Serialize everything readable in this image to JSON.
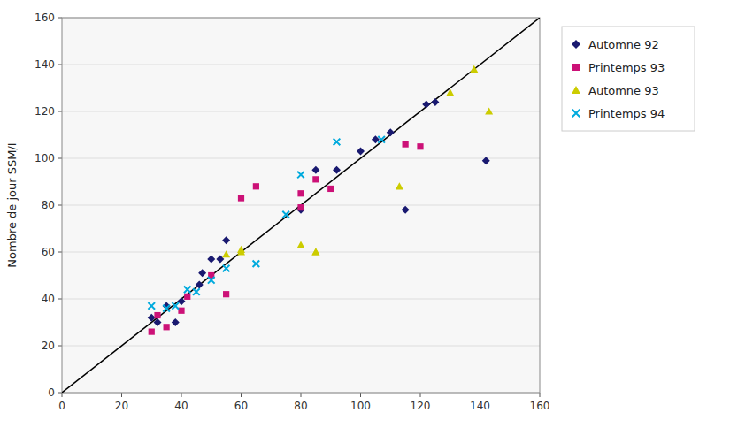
{
  "chart_data": {
    "type": "scatter",
    "ylabel": "Nombre de jour SSM/I",
    "xlim": [
      0,
      160
    ],
    "ylim": [
      0,
      160
    ],
    "xticks": [
      0,
      20,
      40,
      60,
      80,
      100,
      120,
      140,
      160
    ],
    "yticks": [
      0,
      20,
      40,
      60,
      80,
      100,
      120,
      140,
      160
    ],
    "grid": "y",
    "legend": "right",
    "series": [
      {
        "type": "line",
        "color": "#000000",
        "line_style": "solid",
        "x": [
          0,
          160
        ],
        "values": [
          0,
          160
        ]
      },
      {
        "name": "Automne 92",
        "type": "scatter",
        "color": "#191970",
        "marker": "diamond",
        "x": [
          30,
          32,
          35,
          38,
          40,
          46,
          47,
          50,
          53,
          55,
          80,
          85,
          92,
          100,
          105,
          110,
          115,
          122,
          125,
          142
        ],
        "values": [
          32,
          30,
          37,
          30,
          39,
          46,
          51,
          57,
          57,
          65,
          78,
          95,
          95,
          103,
          108,
          111,
          78,
          123,
          124,
          99
        ]
      },
      {
        "name": "Printemps 93",
        "type": "scatter",
        "color": "#cc1177",
        "marker": "square",
        "x": [
          30,
          32,
          35,
          40,
          42,
          50,
          55,
          60,
          65,
          80,
          80,
          85,
          90,
          115,
          120
        ],
        "values": [
          26,
          33,
          28,
          35,
          41,
          50,
          42,
          83,
          88,
          79,
          85,
          91,
          87,
          106,
          105
        ]
      },
      {
        "name": "Automne 93",
        "type": "scatter",
        "color": "#cccc00",
        "marker": "triangle",
        "x": [
          55,
          60,
          60,
          80,
          85,
          85,
          113,
          130,
          138,
          143
        ],
        "values": [
          59,
          60,
          61,
          63,
          60,
          60,
          88,
          128,
          138,
          120
        ]
      },
      {
        "name": "Printemps 94",
        "type": "scatter",
        "color": "#00aadd",
        "marker": "x",
        "x": [
          30,
          35,
          38,
          42,
          45,
          50,
          55,
          65,
          75,
          80,
          92,
          107
        ],
        "values": [
          37,
          36,
          37,
          44,
          43,
          48,
          53,
          55,
          76,
          93,
          107,
          108
        ]
      }
    ]
  }
}
